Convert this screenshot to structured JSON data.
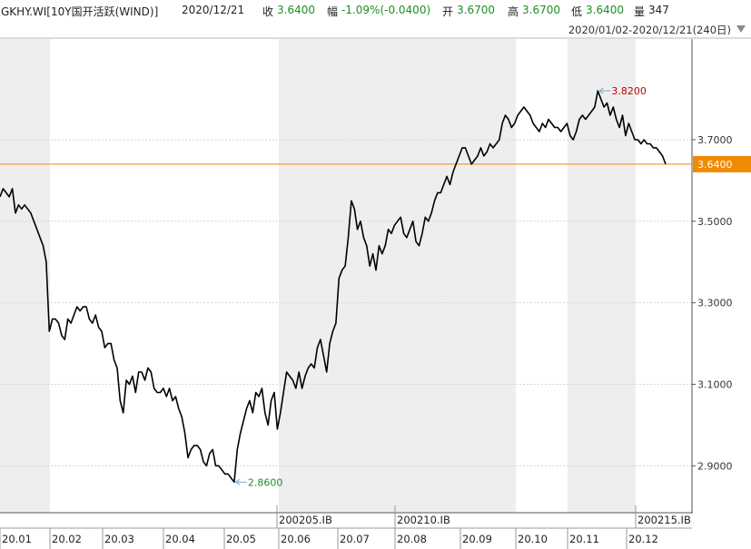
{
  "header": {
    "ticker": "GKHY.WI[10Y国开活跃(WIND)]",
    "date": "2020/12/21",
    "close_label": "收",
    "close_value": "3.6400",
    "change_label": "幅",
    "change_value": "-1.09%(-0.0400)",
    "open_label": "开",
    "open_value": "3.6700",
    "high_label": "高",
    "high_value": "3.6700",
    "low_label": "低",
    "low_value": "3.6400",
    "volume_label": "量",
    "volume_value": "347"
  },
  "range_selector": {
    "label": "2020/01/02-2020/12/21(240日)"
  },
  "colors": {
    "line": "#000000",
    "price_marker": "#f08a00",
    "max_label": "#c00000",
    "min_label": "#1f8f1f",
    "axis": "#555555",
    "shade": "#eeeeee"
  },
  "chart_data": {
    "type": "line",
    "title": "GKHY.WI[10Y国开活跃(WIND)]",
    "xlabel": "",
    "ylabel": "",
    "ylim": [
      2.785,
      3.947
    ],
    "x_axis": {
      "month_labels": [
        "20.01",
        "20.02",
        "20.03",
        "20.04",
        "20.05",
        "20.06",
        "20.07",
        "20.08",
        "20.09",
        "20.10",
        "20.11",
        "20.12"
      ],
      "contract_labels": [
        "200205.IB",
        "200210.IB",
        "200215.IB"
      ]
    },
    "y_ticks": [
      "2.9000",
      "3.1000",
      "3.3000",
      "3.5000",
      "3.7000"
    ],
    "current_value": {
      "value": 3.64,
      "label": "3.6400"
    },
    "annotations": [
      {
        "label": "3.8200",
        "x": "2020-11",
        "y": 3.82,
        "kind": "max"
      },
      {
        "label": "2.8600",
        "x": "2020-04",
        "y": 2.86,
        "kind": "min"
      }
    ],
    "grid": true,
    "series": [
      {
        "values": [
          3.56,
          3.58,
          3.57,
          3.56,
          3.58,
          3.52,
          3.54,
          3.53,
          3.54,
          3.53,
          3.52,
          3.5,
          3.48,
          3.46,
          3.44,
          3.4,
          3.23,
          3.26,
          3.26,
          3.25,
          3.22,
          3.21,
          3.26,
          3.25,
          3.27,
          3.29,
          3.28,
          3.29,
          3.29,
          3.26,
          3.25,
          3.27,
          3.24,
          3.23,
          3.19,
          3.2,
          3.2,
          3.16,
          3.14,
          3.06,
          3.03,
          3.11,
          3.1,
          3.12,
          3.08,
          3.13,
          3.13,
          3.11,
          3.14,
          3.13,
          3.09,
          3.08,
          3.08,
          3.09,
          3.07,
          3.09,
          3.06,
          3.07,
          3.04,
          3.02,
          2.98,
          2.92,
          2.94,
          2.95,
          2.95,
          2.94,
          2.91,
          2.9,
          2.93,
          2.94,
          2.9,
          2.9,
          2.89,
          2.88,
          2.88,
          2.87,
          2.86,
          2.94,
          2.98,
          3.01,
          3.04,
          3.06,
          3.03,
          3.08,
          3.07,
          3.09,
          3.03,
          3.0,
          3.06,
          3.08,
          2.99,
          3.03,
          3.08,
          3.13,
          3.12,
          3.11,
          3.09,
          3.13,
          3.09,
          3.12,
          3.14,
          3.15,
          3.14,
          3.19,
          3.21,
          3.17,
          3.13,
          3.2,
          3.23,
          3.25,
          3.36,
          3.38,
          3.39,
          3.46,
          3.55,
          3.53,
          3.48,
          3.5,
          3.46,
          3.44,
          3.39,
          3.42,
          3.38,
          3.44,
          3.42,
          3.44,
          3.48,
          3.47,
          3.49,
          3.5,
          3.51,
          3.47,
          3.46,
          3.48,
          3.5,
          3.45,
          3.44,
          3.47,
          3.51,
          3.5,
          3.52,
          3.55,
          3.57,
          3.57,
          3.59,
          3.61,
          3.59,
          3.62,
          3.64,
          3.66,
          3.68,
          3.68,
          3.66,
          3.64,
          3.65,
          3.66,
          3.68,
          3.66,
          3.67,
          3.69,
          3.68,
          3.69,
          3.7,
          3.74,
          3.76,
          3.75,
          3.73,
          3.74,
          3.76,
          3.77,
          3.78,
          3.77,
          3.76,
          3.74,
          3.73,
          3.72,
          3.74,
          3.73,
          3.75,
          3.74,
          3.73,
          3.73,
          3.72,
          3.73,
          3.74,
          3.71,
          3.7,
          3.72,
          3.75,
          3.76,
          3.75,
          3.76,
          3.77,
          3.78,
          3.82,
          3.8,
          3.78,
          3.79,
          3.76,
          3.78,
          3.75,
          3.73,
          3.76,
          3.71,
          3.74,
          3.72,
          3.7,
          3.7,
          3.69,
          3.7,
          3.69,
          3.69,
          3.68,
          3.68,
          3.67,
          3.66,
          3.64
        ]
      }
    ]
  }
}
